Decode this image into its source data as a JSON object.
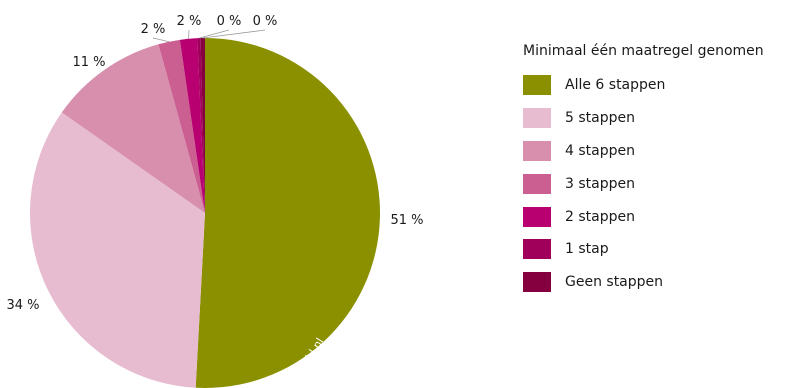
{
  "chart_data": {
    "type": "pie",
    "title": "",
    "legend_title": "Minimaal één maatregel genomen",
    "legend_position": "right",
    "watermark": "pbl.nl",
    "slices": [
      {
        "label": "Alle 6 stappen",
        "value": 51,
        "value_label": "51 %",
        "color": "#8a9000"
      },
      {
        "label": "5 stappen",
        "value": 34,
        "value_label": "34 %",
        "color": "#e8bcd0"
      },
      {
        "label": "4 stappen",
        "value": 11,
        "value_label": "11 %",
        "color": "#d88fae"
      },
      {
        "label": "3 stappen",
        "value": 2,
        "value_label": "2 %",
        "color": "#cc5f92"
      },
      {
        "label": "2 stappen",
        "value": 1.6,
        "value_label": "2 %",
        "color": "#b80070"
      },
      {
        "label": "1 stap",
        "value": 0.3,
        "value_label": "0 %",
        "color": "#a0005a"
      },
      {
        "label": "Geen stappen",
        "value": 0.4,
        "value_label": "0 %",
        "color": "#85003f"
      }
    ]
  }
}
